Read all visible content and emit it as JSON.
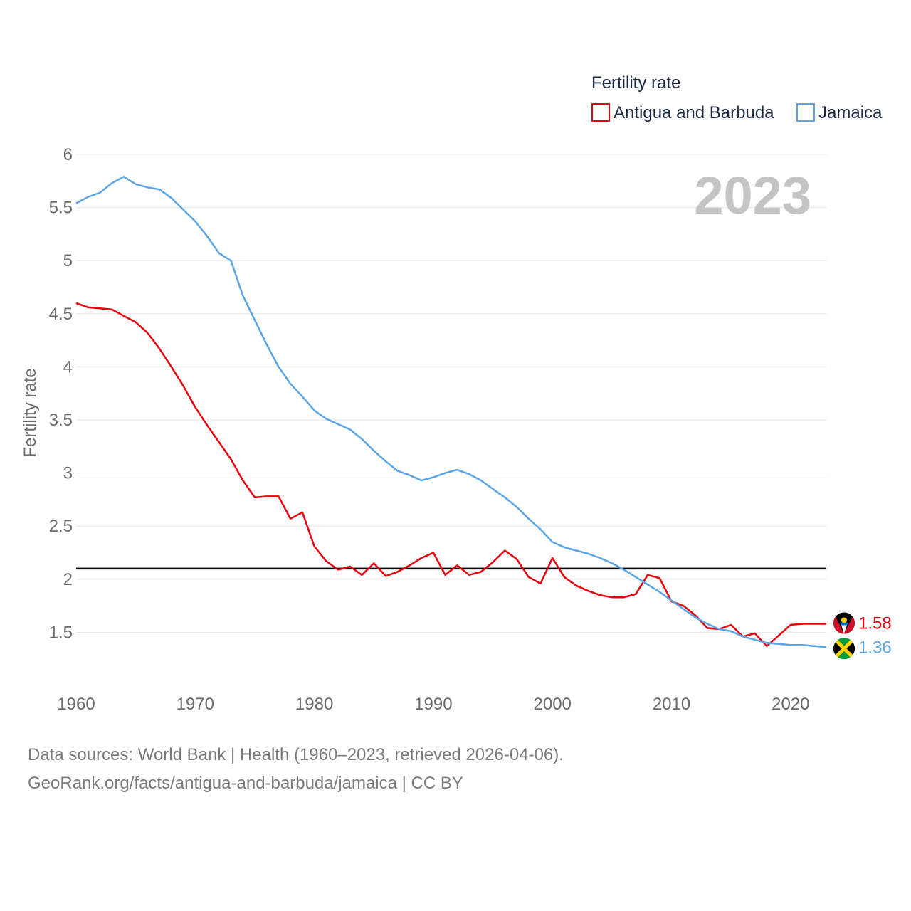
{
  "chart_data": {
    "type": "line",
    "legend_title": "Fertility rate",
    "ylabel": "Fertility rate",
    "year_label": "2023",
    "ylim": [
      1.0,
      6.0
    ],
    "xlim": [
      1960,
      2023
    ],
    "yticks": [
      1.5,
      2,
      2.5,
      3,
      3.5,
      4,
      4.5,
      5,
      5.5,
      6
    ],
    "ytick_labels": [
      "1.5",
      "2",
      "2.5",
      "3",
      "3.5",
      "4",
      "4.5",
      "5",
      "5.5",
      "6"
    ],
    "xticks": [
      1960,
      1970,
      1980,
      1990,
      2000,
      2010,
      2020
    ],
    "xtick_labels": [
      "1960",
      "1970",
      "1980",
      "1990",
      "2000",
      "2010",
      "2020"
    ],
    "reference_line": {
      "value": 2.1,
      "color": "#000000"
    },
    "x": [
      1960,
      1961,
      1962,
      1963,
      1964,
      1965,
      1966,
      1967,
      1968,
      1969,
      1970,
      1971,
      1972,
      1973,
      1974,
      1975,
      1976,
      1977,
      1978,
      1979,
      1980,
      1981,
      1982,
      1983,
      1984,
      1985,
      1986,
      1987,
      1988,
      1989,
      1990,
      1991,
      1992,
      1993,
      1994,
      1995,
      1996,
      1997,
      1998,
      1999,
      2000,
      2001,
      2002,
      2003,
      2004,
      2005,
      2006,
      2007,
      2008,
      2009,
      2010,
      2011,
      2012,
      2013,
      2014,
      2015,
      2016,
      2017,
      2018,
      2019,
      2020,
      2021,
      2022,
      2023
    ],
    "series": [
      {
        "name": "Antigua and Barbuda",
        "color": "#e8000b",
        "end_label": "1.58",
        "values": [
          4.6,
          4.56,
          4.55,
          4.54,
          4.48,
          4.42,
          4.32,
          4.17,
          4.0,
          3.82,
          3.62,
          3.45,
          3.29,
          3.13,
          2.93,
          2.77,
          2.78,
          2.78,
          2.57,
          2.63,
          2.31,
          2.17,
          2.09,
          2.12,
          2.04,
          2.15,
          2.03,
          2.07,
          2.13,
          2.2,
          2.25,
          2.04,
          2.13,
          2.04,
          2.07,
          2.16,
          2.27,
          2.19,
          2.02,
          1.96,
          2.2,
          2.02,
          1.94,
          1.89,
          1.85,
          1.83,
          1.83,
          1.86,
          2.04,
          2.01,
          1.79,
          1.75,
          1.66,
          1.54,
          1.53,
          1.57,
          1.46,
          1.49,
          1.37,
          1.47,
          1.57,
          1.58,
          1.58,
          1.58
        ]
      },
      {
        "name": "Jamaica",
        "color": "#5aa5e6",
        "end_label": "1.36",
        "values": [
          5.54,
          5.6,
          5.64,
          5.73,
          5.79,
          5.72,
          5.69,
          5.67,
          5.59,
          5.48,
          5.37,
          5.23,
          5.07,
          5.0,
          4.67,
          4.44,
          4.21,
          4.0,
          3.84,
          3.72,
          3.59,
          3.51,
          3.46,
          3.41,
          3.32,
          3.21,
          3.11,
          3.02,
          2.98,
          2.93,
          2.96,
          3.0,
          3.03,
          2.99,
          2.93,
          2.85,
          2.77,
          2.68,
          2.57,
          2.47,
          2.35,
          2.3,
          2.27,
          2.24,
          2.2,
          2.15,
          2.09,
          2.02,
          1.95,
          1.88,
          1.8,
          1.72,
          1.64,
          1.58,
          1.53,
          1.51,
          1.46,
          1.43,
          1.4,
          1.39,
          1.38,
          1.38,
          1.37,
          1.36
        ]
      }
    ]
  },
  "footer": {
    "source_line": "Data sources: World Bank | Health (1960–2023, retrieved 2026-04-06).",
    "attribution_line": "GeoRank.org/facts/antigua-and-barbuda/jamaica | CC BY"
  }
}
